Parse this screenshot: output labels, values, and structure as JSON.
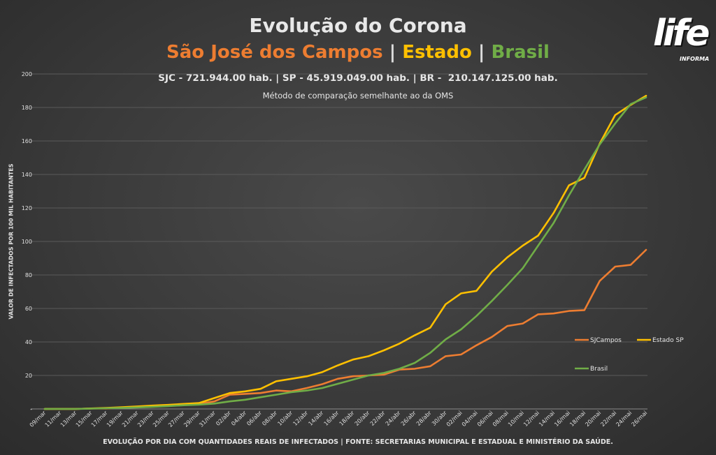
{
  "header": {
    "title": "Evolução do Corona",
    "subtitle_parts": [
      {
        "text": "São José dos Campos",
        "color": "#ed7d31"
      },
      {
        "text": " | ",
        "color": "#dcdcdc"
      },
      {
        "text": "Estado",
        "color": "#ffc000"
      },
      {
        "text": " | ",
        "color": "#dcdcdc"
      },
      {
        "text": "Brasil",
        "color": "#70ad47"
      }
    ],
    "population_line": "SJC - 721.944.00 hab. | SP - 45.919.049.00 hab. | BR -  210.147.125.00 hab.",
    "method_line": "Método de comparação semelhante ao da OMS"
  },
  "footer": "EVOLUÇÃO POR DIA COM QUANTIDADES REAIS DE INFECTADOS | FONTE: SECRETARIAS MUNICIPAL E ESTADUAL E MINISTÉRIO DA SAÚDE.",
  "logo": {
    "text": "life",
    "sub": "INFORMA"
  },
  "chart_data": {
    "type": "line",
    "ylabel": "VALOR DE INFECTADOS POR 100 MIL HABITANTES",
    "ylim": [
      0,
      200
    ],
    "y_ticks": [
      "-",
      "20",
      "40",
      "60",
      "80",
      "100",
      "120",
      "140",
      "160",
      "180",
      "200"
    ],
    "grid": true,
    "x": [
      "09/mar",
      "11/mar",
      "13/mar",
      "15/mar",
      "17/mar",
      "19/mar",
      "21/mar",
      "23/mar",
      "25/mar",
      "27/mar",
      "29/mar",
      "31/mar",
      "02/abr",
      "04/abr",
      "06/abr",
      "08/abr",
      "10/abr",
      "12/abr",
      "14/abr",
      "16/abr",
      "18/abr",
      "20/abr",
      "22/abr",
      "24/abr",
      "26/abr",
      "28/abr",
      "30/abr",
      "02/mai",
      "04/mai",
      "06/mai",
      "08/mai",
      "10/mai",
      "12/mai",
      "14/mai",
      "16/mai",
      "18/mai",
      "20/mai",
      "22/mai",
      "24/mai",
      "26/mai"
    ],
    "series": [
      {
        "name": "SJCampos",
        "color": "#ed7d31",
        "values": [
          0,
          0,
          0,
          0.3,
          0.3,
          0.8,
          1.2,
          1.7,
          2.2,
          2.6,
          3.0,
          4.5,
          8.5,
          9.0,
          9.5,
          11.0,
          10.5,
          12.5,
          14.8,
          18.0,
          19.5,
          20.0,
          20.5,
          23.5,
          24.0,
          25.5,
          31.5,
          32.5,
          38.0,
          43.0,
          49.5,
          51.0,
          56.5,
          57.0,
          58.5,
          59.0,
          76.5,
          85.0,
          86.0,
          95.0
        ]
      },
      {
        "name": "Estado SP",
        "color": "#ffc000",
        "values": [
          0,
          0,
          0,
          0.3,
          0.6,
          1.0,
          1.5,
          2.0,
          2.4,
          3.0,
          3.5,
          6.5,
          9.5,
          10.5,
          12.0,
          16.5,
          18.0,
          19.5,
          22.0,
          26.0,
          29.5,
          31.5,
          35.0,
          39.0,
          44.0,
          48.5,
          62.5,
          69.0,
          70.5,
          82.0,
          90.5,
          97.5,
          103.5,
          117.0,
          133.5,
          138.0,
          158.5,
          175.5,
          181.5,
          187.0
        ]
      },
      {
        "name": "Brasil",
        "color": "#70ad47",
        "values": [
          0,
          0,
          0,
          0.2,
          0.4,
          0.6,
          0.9,
          1.3,
          1.7,
          2.2,
          2.6,
          3.2,
          4.5,
          5.5,
          7.0,
          8.5,
          10.0,
          11.0,
          12.5,
          15.0,
          17.5,
          20.0,
          21.5,
          24.0,
          27.5,
          33.5,
          41.5,
          47.5,
          55.5,
          64.5,
          74.0,
          84.0,
          97.5,
          111.0,
          127.5,
          143.0,
          158.0,
          170.5,
          182.0,
          186.0
        ]
      }
    ],
    "legend": "right"
  }
}
